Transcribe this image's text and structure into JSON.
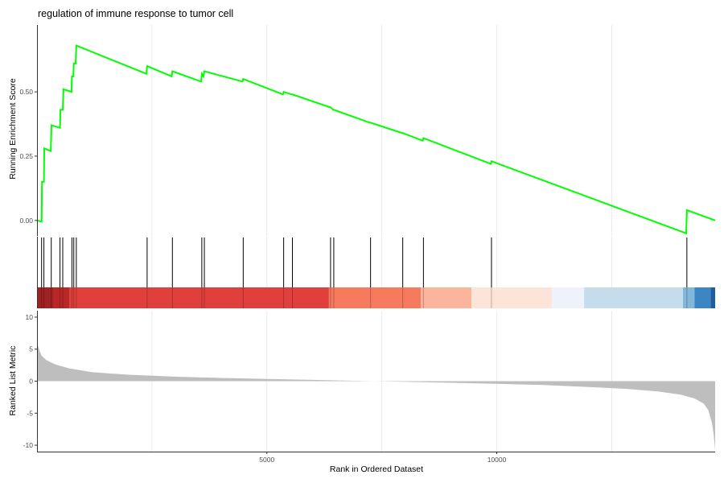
{
  "chart_data": {
    "type": "line",
    "title": "regulation of immune response to tumor cell",
    "xlabel": "Rank in Ordered Dataset",
    "x_ticks": [
      5000,
      10000
    ],
    "x_tick_labels": [
      "5000",
      "10000"
    ],
    "xlim": [
      0,
      14750
    ],
    "grid": "vertical minor/major only (light grey)",
    "panels": [
      {
        "name": "running-enrichment-score",
        "ylabel": "Running Enrichment Score",
        "ylim": [
          -0.06,
          0.76
        ],
        "y_ticks": [
          0.0,
          0.25,
          0.5
        ],
        "y_tick_labels": [
          "0.00",
          "0.25",
          "0.50"
        ],
        "series": [
          {
            "color": "#00ff00",
            "points": [
              [
                0,
                0.0
              ],
              [
                100,
                -0.005
              ],
              [
                108,
                0.15
              ],
              [
                150,
                0.15
              ],
              [
                158,
                0.28
              ],
              [
                300,
                0.27
              ],
              [
                315,
                0.37
              ],
              [
                500,
                0.36
              ],
              [
                510,
                0.43
              ],
              [
                560,
                0.43
              ],
              [
                575,
                0.51
              ],
              [
                750,
                0.5
              ],
              [
                760,
                0.56
              ],
              [
                790,
                0.56
              ],
              [
                800,
                0.61
              ],
              [
                840,
                0.61
              ],
              [
                855,
                0.68
              ],
              [
                2380,
                0.57
              ],
              [
                2395,
                0.6
              ],
              [
                2930,
                0.56
              ],
              [
                2945,
                0.58
              ],
              [
                3570,
                0.54
              ],
              [
                3585,
                0.57
              ],
              [
                3620,
                0.56
              ],
              [
                3640,
                0.58
              ],
              [
                4470,
                0.54
              ],
              [
                4485,
                0.55
              ],
              [
                5350,
                0.49
              ],
              [
                5365,
                0.5
              ],
              [
                5540,
                0.49
              ],
              [
                5555,
                0.49
              ],
              [
                6370,
                0.44
              ],
              [
                6385,
                0.44
              ],
              [
                6440,
                0.43
              ],
              [
                6455,
                0.43
              ],
              [
                7240,
                0.38
              ],
              [
                7255,
                0.38
              ],
              [
                7940,
                0.34
              ],
              [
                7955,
                0.34
              ],
              [
                8390,
                0.31
              ],
              [
                8405,
                0.32
              ],
              [
                9870,
                0.22
              ],
              [
                9885,
                0.23
              ],
              [
                14120,
                -0.05
              ],
              [
                14135,
                0.04
              ],
              [
                14750,
                0.0
              ]
            ]
          }
        ]
      },
      {
        "name": "gene-hits",
        "hits": [
          100,
          150,
          310,
          500,
          560,
          760,
          800,
          855,
          2395,
          2945,
          3585,
          3640,
          4485,
          5365,
          5555,
          6385,
          6455,
          7255,
          7955,
          8405,
          9885,
          14135
        ],
        "hit_color": "#000000",
        "heat_bands": [
          {
            "from": 0,
            "to": 350,
            "color": "#a12222"
          },
          {
            "from": 350,
            "to": 700,
            "color": "#b92727"
          },
          {
            "from": 700,
            "to": 6350,
            "color": "#e0403c"
          },
          {
            "from": 6350,
            "to": 8350,
            "color": "#f67a5e"
          },
          {
            "from": 8350,
            "to": 9450,
            "color": "#fcb59d"
          },
          {
            "from": 9450,
            "to": 11200,
            "color": "#fde4d9"
          },
          {
            "from": 11200,
            "to": 11900,
            "color": "#eef3fb"
          },
          {
            "from": 11900,
            "to": 14050,
            "color": "#c4dceb"
          },
          {
            "from": 14050,
            "to": 14300,
            "color": "#83b7da"
          },
          {
            "from": 14300,
            "to": 14650,
            "color": "#3c87c3"
          },
          {
            "from": 14650,
            "to": 14750,
            "color": "#1e5e9f"
          }
        ]
      },
      {
        "name": "ranked-list-metric",
        "type": "area",
        "ylabel": "Ranked List Metric",
        "ylim": [
          -11,
          11
        ],
        "y_ticks": [
          10,
          5,
          0,
          -5,
          -10
        ],
        "y_tick_labels": [
          "10",
          "5",
          "0",
          "-5",
          "-10"
        ],
        "fill": "#bebebe",
        "points": [
          [
            0,
            6.5
          ],
          [
            20,
            5.6
          ],
          [
            50,
            4.8
          ],
          [
            100,
            4.0
          ],
          [
            200,
            3.3
          ],
          [
            400,
            2.6
          ],
          [
            700,
            2.0
          ],
          [
            1200,
            1.4
          ],
          [
            2000,
            1.0
          ],
          [
            3000,
            0.7
          ],
          [
            4000,
            0.5
          ],
          [
            5000,
            0.35
          ],
          [
            6000,
            0.2
          ],
          [
            7000,
            0.05
          ],
          [
            8000,
            -0.1
          ],
          [
            9000,
            -0.25
          ],
          [
            10000,
            -0.4
          ],
          [
            11000,
            -0.6
          ],
          [
            12000,
            -0.9
          ],
          [
            12800,
            -1.2
          ],
          [
            13500,
            -1.6
          ],
          [
            14000,
            -2.1
          ],
          [
            14300,
            -2.7
          ],
          [
            14500,
            -3.5
          ],
          [
            14600,
            -4.5
          ],
          [
            14680,
            -6.5
          ],
          [
            14720,
            -8.5
          ],
          [
            14750,
            -10.8
          ]
        ]
      }
    ]
  }
}
